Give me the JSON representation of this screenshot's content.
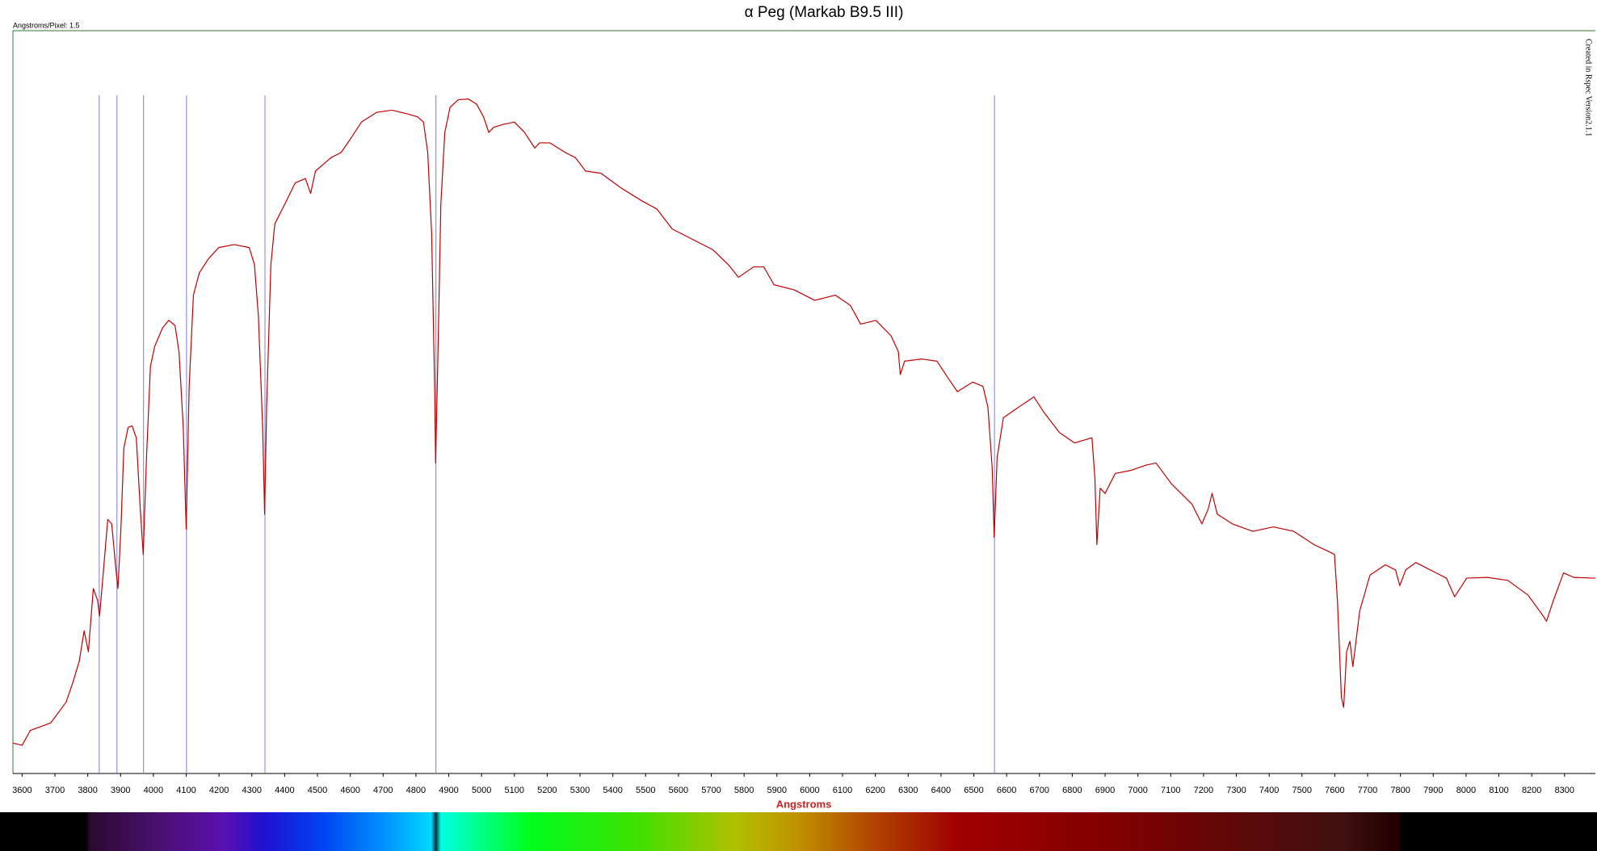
{
  "chart_data": {
    "type": "line",
    "title": "α Peg (Markab B9.5 III)",
    "x_label": "Angstroms",
    "annotations": [
      "Angstroms/Pixel: 1.5",
      "Created in Rspec Version2.1.1"
    ],
    "color": "#c00000",
    "xlim": [
      3572,
      8394
    ],
    "ylim": [
      0,
      1
    ],
    "xticks": [
      3600,
      3700,
      3800,
      3900,
      4000,
      4100,
      4200,
      4300,
      4400,
      4500,
      4600,
      4700,
      4800,
      4900,
      5000,
      5100,
      5200,
      5300,
      5400,
      5500,
      5600,
      5700,
      5800,
      5900,
      6000,
      6100,
      6200,
      6300,
      6400,
      6500,
      6600,
      6700,
      6800,
      6900,
      7000,
      7100,
      7200,
      7300,
      7400,
      7500,
      7600,
      7700,
      7800,
      7900,
      8000,
      8100,
      8200,
      8300
    ],
    "reference_lines": [
      3835,
      3889,
      3970,
      4101,
      4340,
      4861,
      6563
    ],
    "reference_color": "#7b7be0",
    "x": [
      3572,
      3600,
      3625,
      3687,
      3734,
      3755,
      3774,
      3789,
      3802,
      3817,
      3830,
      3836,
      3848,
      3861,
      3873,
      3886,
      3892,
      3901,
      3910,
      3923,
      3935,
      3948,
      3960,
      3969,
      3979,
      3991,
      4004,
      4028,
      4047,
      4066,
      4078,
      4091,
      4100,
      4109,
      4122,
      4140,
      4168,
      4199,
      4246,
      4292,
      4308,
      4320,
      4333,
      4339,
      4345,
      4358,
      4370,
      4401,
      4432,
      4463,
      4479,
      4494,
      4541,
      4572,
      4603,
      4634,
      4680,
      4727,
      4774,
      4805,
      4823,
      4836,
      4848,
      4857,
      4860,
      4867,
      4876,
      4888,
      4904,
      4929,
      4960,
      4985,
      5006,
      5022,
      5037,
      5068,
      5100,
      5131,
      5162,
      5177,
      5208,
      5255,
      5286,
      5317,
      5364,
      5426,
      5488,
      5534,
      5581,
      5643,
      5705,
      5752,
      5783,
      5829,
      5860,
      5891,
      5953,
      6015,
      6078,
      6124,
      6155,
      6202,
      6248,
      6270,
      6276,
      6289,
      6341,
      6388,
      6419,
      6450,
      6497,
      6528,
      6543,
      6556,
      6562,
      6571,
      6590,
      6636,
      6683,
      6714,
      6761,
      6807,
      6860,
      6869,
      6875,
      6885,
      6900,
      6931,
      6978,
      7024,
      7055,
      7102,
      7164,
      7195,
      7214,
      7226,
      7242,
      7288,
      7350,
      7413,
      7475,
      7537,
      7599,
      7608,
      7620,
      7627,
      7636,
      7646,
      7655,
      7676,
      7707,
      7754,
      7785,
      7798,
      7816,
      7847,
      7878,
      7940,
      7965,
      8002,
      8065,
      8127,
      8189,
      8235,
      8245,
      8266,
      8297,
      8328,
      8394
    ],
    "values": [
      0.041,
      0.038,
      0.058,
      0.068,
      0.096,
      0.123,
      0.151,
      0.192,
      0.164,
      0.249,
      0.233,
      0.212,
      0.274,
      0.342,
      0.336,
      0.274,
      0.249,
      0.329,
      0.438,
      0.466,
      0.468,
      0.452,
      0.356,
      0.295,
      0.425,
      0.548,
      0.575,
      0.6,
      0.61,
      0.603,
      0.568,
      0.466,
      0.329,
      0.521,
      0.644,
      0.674,
      0.693,
      0.708,
      0.712,
      0.708,
      0.685,
      0.616,
      0.466,
      0.349,
      0.493,
      0.685,
      0.74,
      0.767,
      0.795,
      0.801,
      0.781,
      0.811,
      0.829,
      0.836,
      0.856,
      0.877,
      0.89,
      0.893,
      0.888,
      0.884,
      0.877,
      0.836,
      0.726,
      0.521,
      0.418,
      0.562,
      0.767,
      0.863,
      0.897,
      0.907,
      0.908,
      0.901,
      0.884,
      0.863,
      0.87,
      0.874,
      0.877,
      0.863,
      0.842,
      0.849,
      0.849,
      0.836,
      0.829,
      0.811,
      0.808,
      0.788,
      0.771,
      0.76,
      0.733,
      0.719,
      0.705,
      0.685,
      0.668,
      0.682,
      0.682,
      0.658,
      0.651,
      0.637,
      0.644,
      0.63,
      0.605,
      0.61,
      0.589,
      0.568,
      0.537,
      0.555,
      0.558,
      0.555,
      0.534,
      0.514,
      0.527,
      0.521,
      0.493,
      0.411,
      0.318,
      0.425,
      0.479,
      0.493,
      0.507,
      0.486,
      0.459,
      0.445,
      0.452,
      0.397,
      0.308,
      0.384,
      0.377,
      0.404,
      0.408,
      0.415,
      0.418,
      0.39,
      0.363,
      0.336,
      0.356,
      0.377,
      0.349,
      0.336,
      0.326,
      0.332,
      0.326,
      0.308,
      0.295,
      0.233,
      0.103,
      0.089,
      0.164,
      0.178,
      0.144,
      0.219,
      0.267,
      0.281,
      0.274,
      0.253,
      0.274,
      0.284,
      0.277,
      0.263,
      0.238,
      0.263,
      0.264,
      0.26,
      0.24,
      0.212,
      0.205,
      0.233,
      0.27,
      0.264,
      0.263
    ]
  }
}
